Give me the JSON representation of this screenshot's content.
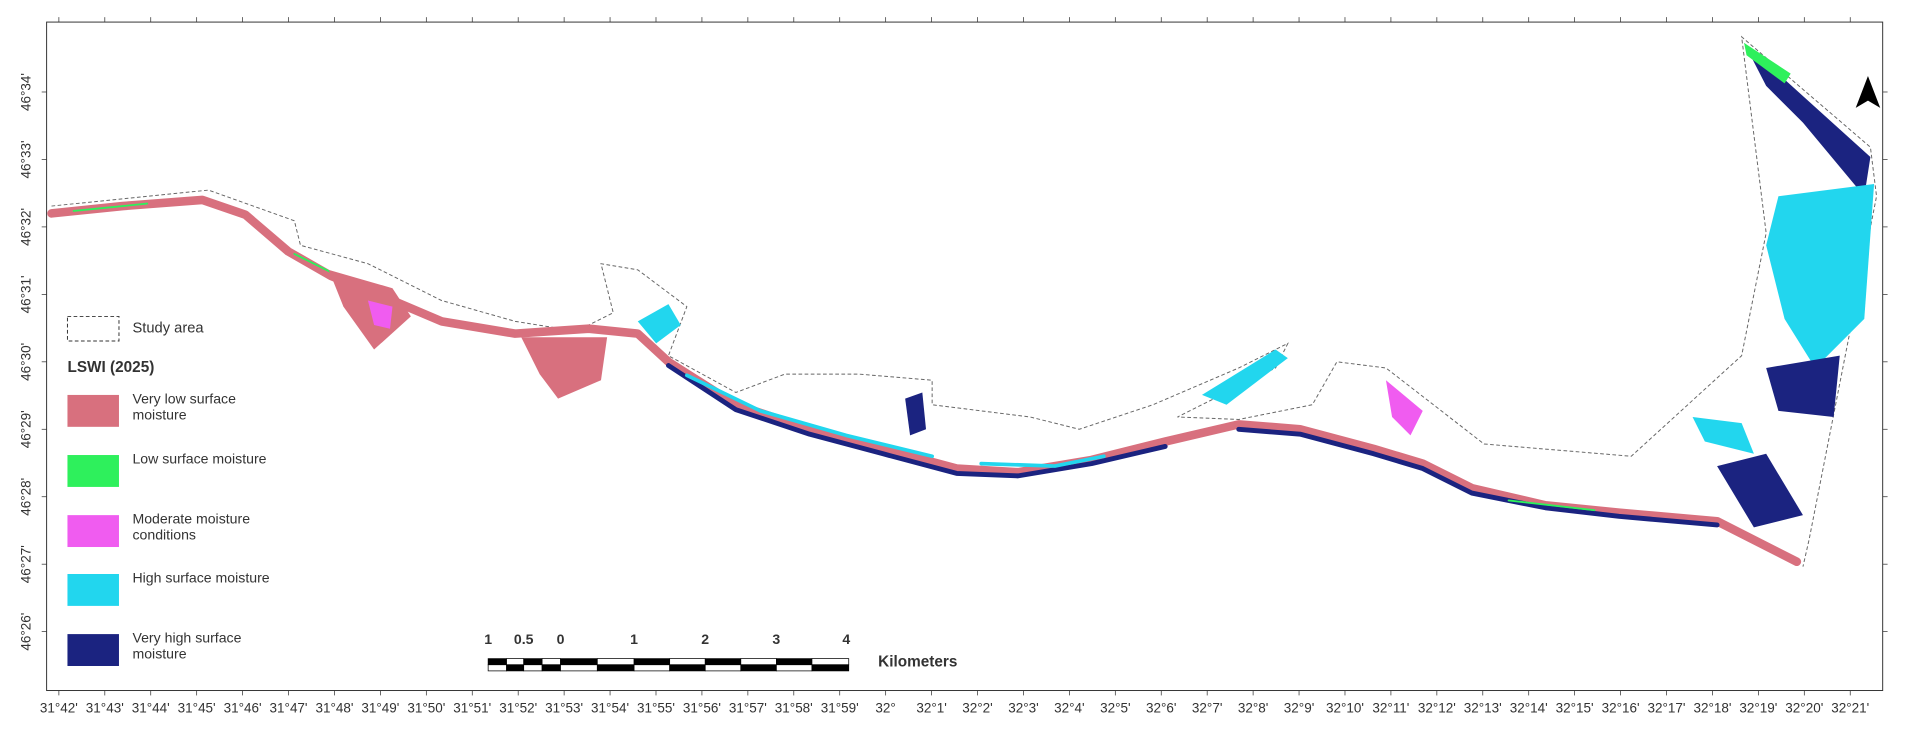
{
  "map": {
    "lon_labels": [
      "31°42'",
      "31°43'",
      "31°44'",
      "31°45'",
      "31°46'",
      "31°47'",
      "31°48'",
      "31°49'",
      "31°50'",
      "31°51'",
      "31°52'",
      "31°53'",
      "31°54'",
      "31°55'",
      "31°56'",
      "31°57'",
      "31°58'",
      "31°59'",
      "32°",
      "32°1'",
      "32°2'",
      "32°3'",
      "32°4'",
      "32°5'",
      "32°6'",
      "32°7'",
      "32°8'",
      "32°9'",
      "32°10'",
      "32°11'",
      "32°12'",
      "32°13'",
      "32°14'",
      "32°15'",
      "32°16'",
      "32°17'",
      "32°18'",
      "32°19'",
      "32°20'",
      "32°21'"
    ],
    "lat_labels": [
      "46°34'",
      "46°33'",
      "46°32'",
      "46°31'",
      "46°30'",
      "46°29'",
      "46°28'",
      "46°27'",
      "46°26'"
    ],
    "legend": {
      "study_area": "Study area",
      "title": "LSWI (2025)",
      "items": [
        {
          "label": "Very low surface moisture",
          "color": "#d8707e"
        },
        {
          "label": "Low surface moisture",
          "color": "#2ef05c"
        },
        {
          "label": "Moderate moisture conditions",
          "color": "#f05cf0"
        },
        {
          "label": "High surface moisture",
          "color": "#22d6ee"
        },
        {
          "label": "Very high surface moisture",
          "color": "#1b2380"
        }
      ]
    },
    "scale_bar": {
      "labels": [
        "1",
        "0.5",
        "0",
        "1",
        "2",
        "3",
        "4"
      ],
      "unit": "Kilometers"
    }
  }
}
